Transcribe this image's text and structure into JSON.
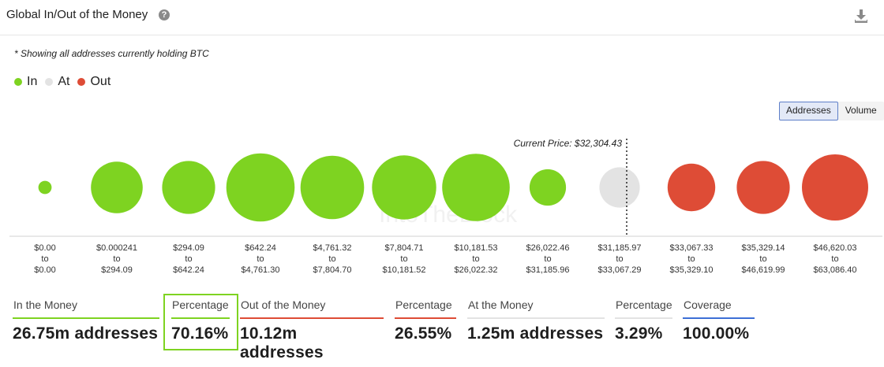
{
  "header": {
    "title": "Global In/Out of the Money",
    "help_symbol": "?",
    "download_icon": "download-icon"
  },
  "note": "* Showing all addresses currently holding BTC",
  "legend": [
    {
      "label": "In",
      "color": "#7ed321"
    },
    {
      "label": "At",
      "color": "#e3e3e3"
    },
    {
      "label": "Out",
      "color": "#de4c36"
    }
  ],
  "toggle": {
    "addresses": "Addresses",
    "volume": "Volume",
    "selected": "Addresses"
  },
  "chart_data": {
    "type": "bubble",
    "annotation": "Current Price: $32,304.43",
    "current_price": 32304.43,
    "watermark": "IntoTheBlock",
    "bubbles": [
      {
        "from": "$0.00",
        "to": "$0.00",
        "status": "In",
        "relative_size": 0.2
      },
      {
        "from": "$0.000241",
        "to": "$294.09",
        "status": "In",
        "relative_size": 0.78
      },
      {
        "from": "$294.09",
        "to": "$642.24",
        "status": "In",
        "relative_size": 0.8
      },
      {
        "from": "$642.24",
        "to": "$4,761.30",
        "status": "In",
        "relative_size": 1.03
      },
      {
        "from": "$4,761.32",
        "to": "$7,804.70",
        "status": "In",
        "relative_size": 0.96
      },
      {
        "from": "$7,804.71",
        "to": "$10,181.52",
        "status": "In",
        "relative_size": 0.97
      },
      {
        "from": "$10,181.53",
        "to": "$26,022.32",
        "status": "In",
        "relative_size": 1.02
      },
      {
        "from": "$26,022.46",
        "to": "$31,185.96",
        "status": "In",
        "relative_size": 0.55
      },
      {
        "from": "$31,185.97",
        "to": "$33,067.29",
        "status": "At",
        "relative_size": 0.61
      },
      {
        "from": "$33,067.33",
        "to": "$35,329.10",
        "status": "Out",
        "relative_size": 0.72
      },
      {
        "from": "$35,329.14",
        "to": "$46,619.99",
        "status": "Out",
        "relative_size": 0.8
      },
      {
        "from": "$46,620.03",
        "to": "$63,086.40",
        "status": "Out",
        "relative_size": 1.0
      }
    ],
    "connector": "to"
  },
  "stats": [
    {
      "label": "In the Money",
      "value": "26.75m addresses",
      "color": "#7ed321"
    },
    {
      "label": "Percentage",
      "value": "70.16%",
      "color": "#7ed321"
    },
    {
      "label": "Out of the Money",
      "value": "10.12m addresses",
      "color": "#de4c36"
    },
    {
      "label": "Percentage",
      "value": "26.55%",
      "color": "#de4c36"
    },
    {
      "label": "At the Money",
      "value": "1.25m addresses",
      "color": "#e3e3e3"
    },
    {
      "label": "Percentage",
      "value": "3.29%",
      "color": "#e3e3e3"
    },
    {
      "label": "Coverage",
      "value": "100.00%",
      "color": "#3d6fd6"
    }
  ]
}
